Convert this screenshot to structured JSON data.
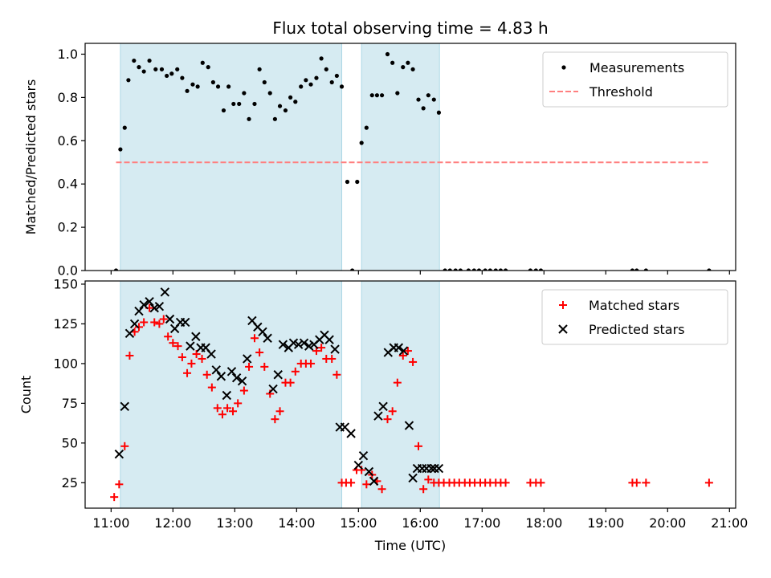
{
  "figure_title": "Flux total observing time = 4.83 h",
  "colors": {
    "shade": "#add8e6",
    "threshold": "#ff7f7f",
    "measurement": "#000000",
    "matched": "#ff0000",
    "predicted": "#000000"
  },
  "chart_data": [
    {
      "type": "scatter",
      "ylabel": "Matched/Predicted stars",
      "xlim": [
        10.58,
        21.1
      ],
      "ylim": [
        0,
        1.05
      ],
      "y_ticks": [
        "0.0",
        "0.2",
        "0.4",
        "0.6",
        "0.8",
        "1.0"
      ],
      "y_tick_values": [
        0,
        0.2,
        0.4,
        0.6,
        0.8,
        1.0
      ],
      "legend_position": "top-right",
      "legend": [
        {
          "label": "Measurements",
          "marker": "dot"
        },
        {
          "label": "Threshold",
          "marker": "dashed-line"
        }
      ],
      "shaded_spans": [
        [
          11.15,
          14.73
        ],
        [
          15.05,
          16.31
        ]
      ],
      "threshold": {
        "value": 0.5,
        "x_range": [
          11.08,
          20.67
        ]
      },
      "series": [
        {
          "name": "Measurements",
          "x": [
            11.08,
            11.15,
            11.22,
            11.28,
            11.37,
            11.45,
            11.53,
            11.62,
            11.72,
            11.82,
            11.9,
            11.98,
            12.07,
            12.15,
            12.23,
            12.32,
            12.4,
            12.48,
            12.57,
            12.65,
            12.73,
            12.82,
            12.9,
            12.98,
            13.07,
            13.15,
            13.23,
            13.32,
            13.4,
            13.48,
            13.57,
            13.65,
            13.73,
            13.82,
            13.9,
            13.98,
            14.07,
            14.15,
            14.23,
            14.32,
            14.4,
            14.48,
            14.57,
            14.65,
            14.73,
            14.82,
            14.9,
            14.98,
            15.05,
            15.13,
            15.22,
            15.3,
            15.38,
            15.47,
            15.55,
            15.63,
            15.72,
            15.8,
            15.88,
            15.97,
            16.05,
            16.13,
            16.22,
            16.3,
            16.4,
            16.48,
            16.57,
            16.65,
            16.78,
            16.87,
            16.95,
            17.05,
            17.13,
            17.22,
            17.3,
            17.38,
            17.78,
            17.87,
            17.95,
            19.43,
            19.5,
            19.65,
            20.67
          ],
          "y": [
            0.0,
            0.56,
            0.66,
            0.88,
            0.97,
            0.94,
            0.92,
            0.97,
            0.93,
            0.93,
            0.9,
            0.91,
            0.93,
            0.89,
            0.83,
            0.86,
            0.85,
            0.96,
            0.94,
            0.87,
            0.85,
            0.74,
            0.85,
            0.77,
            0.77,
            0.82,
            0.7,
            0.77,
            0.93,
            0.87,
            0.82,
            0.7,
            0.76,
            0.74,
            0.8,
            0.78,
            0.85,
            0.88,
            0.86,
            0.89,
            0.98,
            0.93,
            0.87,
            0.9,
            0.85,
            0.41,
            0.0,
            0.41,
            0.59,
            0.66,
            0.81,
            0.81,
            0.81,
            1.0,
            0.96,
            0.82,
            0.94,
            0.96,
            0.93,
            0.79,
            0.75,
            0.81,
            0.79,
            0.73,
            0.0,
            0.0,
            0.0,
            0.0,
            0.0,
            0.0,
            0.0,
            0.0,
            0.0,
            0.0,
            0.0,
            0.0,
            0.0,
            0.0,
            0.0,
            0.0,
            0.0,
            0.0,
            0.0
          ]
        }
      ]
    },
    {
      "type": "scatter",
      "xlabel": "Time (UTC)",
      "ylabel": "Count",
      "xlim": [
        10.58,
        21.1
      ],
      "ylim": [
        9,
        152
      ],
      "x_ticks": [
        "11:00",
        "12:00",
        "13:00",
        "14:00",
        "15:00",
        "16:00",
        "17:00",
        "18:00",
        "19:00",
        "20:00",
        "21:00"
      ],
      "x_tick_values": [
        11,
        12,
        13,
        14,
        15,
        16,
        17,
        18,
        19,
        20,
        21
      ],
      "y_ticks": [
        "25",
        "50",
        "75",
        "100",
        "125",
        "150"
      ],
      "y_tick_values": [
        25,
        50,
        75,
        100,
        125,
        150
      ],
      "legend_position": "top-right",
      "legend": [
        {
          "label": "Matched stars",
          "marker": "plus"
        },
        {
          "label": "Predicted stars",
          "marker": "x"
        }
      ],
      "shaded_spans": [
        [
          11.15,
          14.73
        ],
        [
          15.05,
          16.31
        ]
      ],
      "series": [
        {
          "name": "Matched stars",
          "x": [
            11.05,
            11.13,
            11.22,
            11.3,
            11.38,
            11.45,
            11.53,
            11.62,
            11.7,
            11.78,
            11.85,
            11.92,
            12.0,
            12.08,
            12.15,
            12.23,
            12.3,
            12.38,
            12.47,
            12.55,
            12.63,
            12.72,
            12.8,
            12.88,
            12.97,
            13.05,
            13.15,
            13.23,
            13.32,
            13.4,
            13.48,
            13.57,
            13.65,
            13.73,
            13.82,
            13.9,
            13.98,
            14.07,
            14.15,
            14.23,
            14.32,
            14.4,
            14.48,
            14.57,
            14.65,
            14.73,
            14.8,
            14.88,
            14.97,
            15.05,
            15.13,
            15.22,
            15.3,
            15.38,
            15.47,
            15.55,
            15.63,
            15.72,
            15.8,
            15.88,
            15.97,
            16.05,
            16.13,
            16.22,
            16.3,
            16.38,
            16.47,
            16.55,
            16.63,
            16.72,
            16.8,
            16.88,
            16.97,
            17.05,
            17.13,
            17.22,
            17.3,
            17.38,
            17.78,
            17.87,
            17.95,
            19.43,
            19.5,
            19.65,
            20.67
          ],
          "y": [
            16,
            24,
            48,
            105,
            120,
            123,
            126,
            135,
            126,
            125,
            128,
            117,
            113,
            111,
            104,
            94,
            100,
            106,
            103,
            93,
            85,
            72,
            68,
            72,
            70,
            75,
            83,
            98,
            116,
            107,
            98,
            81,
            65,
            70,
            88,
            88,
            95,
            100,
            100,
            100,
            108,
            110,
            103,
            103,
            93,
            25,
            25,
            25,
            33,
            33,
            24,
            30,
            26,
            21,
            65,
            70,
            88,
            105,
            108,
            101,
            48,
            21,
            27,
            25,
            25,
            25,
            25,
            25,
            25,
            25,
            25,
            25,
            25,
            25,
            25,
            25,
            25,
            25,
            25,
            25,
            25,
            25,
            25,
            25,
            25
          ]
        },
        {
          "name": "Predicted stars",
          "x": [
            11.13,
            11.22,
            11.3,
            11.38,
            11.45,
            11.53,
            11.62,
            11.7,
            11.78,
            11.87,
            11.95,
            12.03,
            12.12,
            12.2,
            12.28,
            12.37,
            12.45,
            12.53,
            12.62,
            12.7,
            12.78,
            12.87,
            12.95,
            13.03,
            13.12,
            13.2,
            13.28,
            13.37,
            13.45,
            13.53,
            13.62,
            13.7,
            13.78,
            13.87,
            13.95,
            14.03,
            14.12,
            14.2,
            14.28,
            14.37,
            14.45,
            14.53,
            14.62,
            14.7,
            14.78,
            14.88,
            15.0,
            15.08,
            15.17,
            15.25,
            15.32,
            15.4,
            15.48,
            15.57,
            15.65,
            15.73,
            15.82,
            15.88,
            15.95,
            16.03,
            16.1,
            16.18,
            16.23,
            16.3
          ],
          "y": [
            43,
            73,
            119,
            125,
            133,
            137,
            139,
            135,
            136,
            145,
            128,
            122,
            126,
            126,
            111,
            117,
            110,
            110,
            106,
            96,
            92,
            80,
            95,
            91,
            89,
            103,
            127,
            123,
            120,
            116,
            84,
            93,
            112,
            110,
            113,
            112,
            113,
            111,
            112,
            115,
            118,
            115,
            109,
            60,
            60,
            56,
            36,
            42,
            32,
            26,
            67,
            73,
            107,
            110,
            110,
            108,
            61,
            28,
            34,
            34,
            34,
            34,
            34,
            34
          ]
        }
      ]
    }
  ]
}
